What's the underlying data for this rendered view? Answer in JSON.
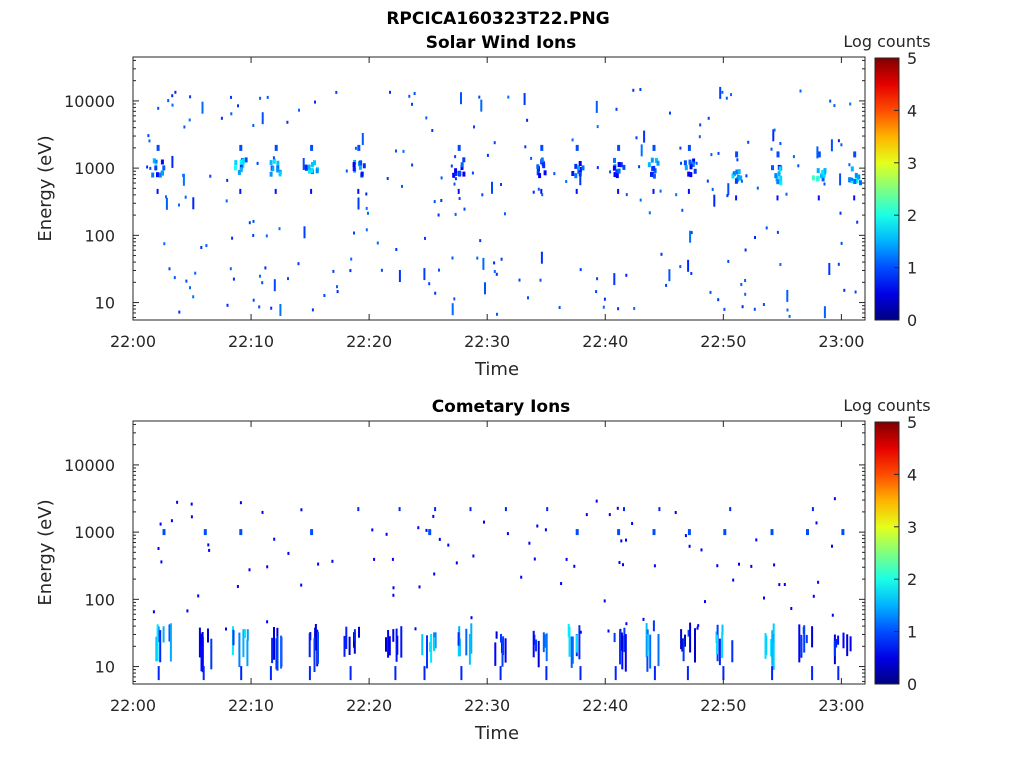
{
  "figure": {
    "title": "RPCICA160323T22.PNG"
  },
  "chart_data": [
    {
      "type": "heatmap",
      "title": "Solar Wind Ions",
      "xlabel": "Time",
      "ylabel": "Energy (eV)",
      "x_range": [
        "22:00",
        "23:02"
      ],
      "x_ticks": [
        "22:00",
        "22:10",
        "22:20",
        "22:30",
        "22:40",
        "22:50",
        "23:00"
      ],
      "y_scale": "log",
      "y_range": [
        5.5,
        45000
      ],
      "y_ticks": [
        10,
        100,
        1000,
        10000
      ],
      "y_tick_labels": [
        "10",
        "100",
        "1000",
        "10000"
      ],
      "colorbar": {
        "label": "Log counts",
        "range": [
          0,
          5
        ],
        "ticks": [
          "0",
          "1",
          "2",
          "3",
          "4",
          "5"
        ],
        "colormap": "jet"
      },
      "blobs": [
        {
          "t": "22:02",
          "energy": 1000,
          "log_counts": 1.8
        },
        {
          "t": "22:09",
          "energy": 1000,
          "log_counts": 2.0
        },
        {
          "t": "22:12",
          "energy": 1000,
          "log_counts": 1.8
        },
        {
          "t": "22:15",
          "energy": 1000,
          "log_counts": 2.0
        },
        {
          "t": "22:19",
          "energy": 1000,
          "log_counts": 1.7
        },
        {
          "t": "22:27.5",
          "energy": 1000,
          "log_counts": 1.5
        },
        {
          "t": "22:34.5",
          "energy": 1000,
          "log_counts": 1.5
        },
        {
          "t": "22:37.5",
          "energy": 1000,
          "log_counts": 1.6
        },
        {
          "t": "22:41",
          "energy": 1000,
          "log_counts": 1.6
        },
        {
          "t": "22:44",
          "energy": 1000,
          "log_counts": 1.8
        },
        {
          "t": "22:47",
          "energy": 1000,
          "log_counts": 1.5
        },
        {
          "t": "22:51",
          "energy": 800,
          "log_counts": 2.1
        },
        {
          "t": "22:54.5",
          "energy": 800,
          "log_counts": 1.9
        },
        {
          "t": "22:58",
          "energy": 800,
          "log_counts": 2.2
        },
        {
          "t": "23:01",
          "energy": 800,
          "log_counts": 2.0
        }
      ],
      "scatter_energy_range": [
        6,
        15000
      ],
      "scatter_log_counts": 0.8
    },
    {
      "type": "heatmap",
      "title": "Cometary Ions",
      "xlabel": "Time",
      "ylabel": "Energy (eV)",
      "x_range": [
        "22:00",
        "23:02"
      ],
      "x_ticks": [
        "22:00",
        "22:10",
        "22:20",
        "22:30",
        "22:40",
        "22:50",
        "23:00"
      ],
      "y_scale": "log",
      "y_range": [
        5.5,
        45000
      ],
      "y_ticks": [
        10,
        100,
        1000,
        10000
      ],
      "y_tick_labels": [
        "10",
        "100",
        "1000",
        "10000"
      ],
      "colorbar": {
        "label": "Log counts",
        "range": [
          0,
          5
        ],
        "ticks": [
          "0",
          "1",
          "2",
          "3",
          "4",
          "5"
        ],
        "colormap": "jet"
      },
      "columns": [
        {
          "t": "22:02.5",
          "energy_range": [
            12,
            45
          ],
          "log_counts": 1.8
        },
        {
          "t": "22:06",
          "energy_range": [
            10,
            40
          ],
          "log_counts": 1.0
        },
        {
          "t": "22:09",
          "energy_range": [
            12,
            40
          ],
          "log_counts": 1.8
        },
        {
          "t": "22:12",
          "energy_range": [
            10,
            45
          ],
          "log_counts": 1.2
        },
        {
          "t": "22:15",
          "energy_range": [
            10,
            45
          ],
          "log_counts": 1.0
        },
        {
          "t": "22:18.5",
          "energy_range": [
            12,
            40
          ],
          "log_counts": 1.0
        },
        {
          "t": "22:22",
          "energy_range": [
            12,
            45
          ],
          "log_counts": 1.0
        },
        {
          "t": "22:25",
          "energy_range": [
            10,
            40
          ],
          "log_counts": 1.8
        },
        {
          "t": "22:28",
          "energy_range": [
            10,
            45
          ],
          "log_counts": 1.8
        },
        {
          "t": "22:31",
          "energy_range": [
            12,
            35
          ],
          "log_counts": 1.2
        },
        {
          "t": "22:34.5",
          "energy_range": [
            10,
            40
          ],
          "log_counts": 1.2
        },
        {
          "t": "22:37.5",
          "energy_range": [
            10,
            45
          ],
          "log_counts": 1.8
        },
        {
          "t": "22:41",
          "energy_range": [
            10,
            40
          ],
          "log_counts": 1.0
        },
        {
          "t": "22:44",
          "energy_range": [
            10,
            50
          ],
          "log_counts": 1.8
        },
        {
          "t": "22:47",
          "energy_range": [
            10,
            45
          ],
          "log_counts": 1.0
        },
        {
          "t": "22:50",
          "energy_range": [
            10,
            45
          ],
          "log_counts": 1.8
        },
        {
          "t": "22:54",
          "energy_range": [
            10,
            45
          ],
          "log_counts": 1.8
        },
        {
          "t": "22:57",
          "energy_range": [
            10,
            50
          ],
          "log_counts": 1.2
        },
        {
          "t": "23:00",
          "energy_range": [
            10,
            40
          ],
          "log_counts": 1.0
        }
      ],
      "upper_band": {
        "energy": 1000,
        "log_counts": 1.0
      },
      "scatter_log_counts": 0.6
    }
  ]
}
